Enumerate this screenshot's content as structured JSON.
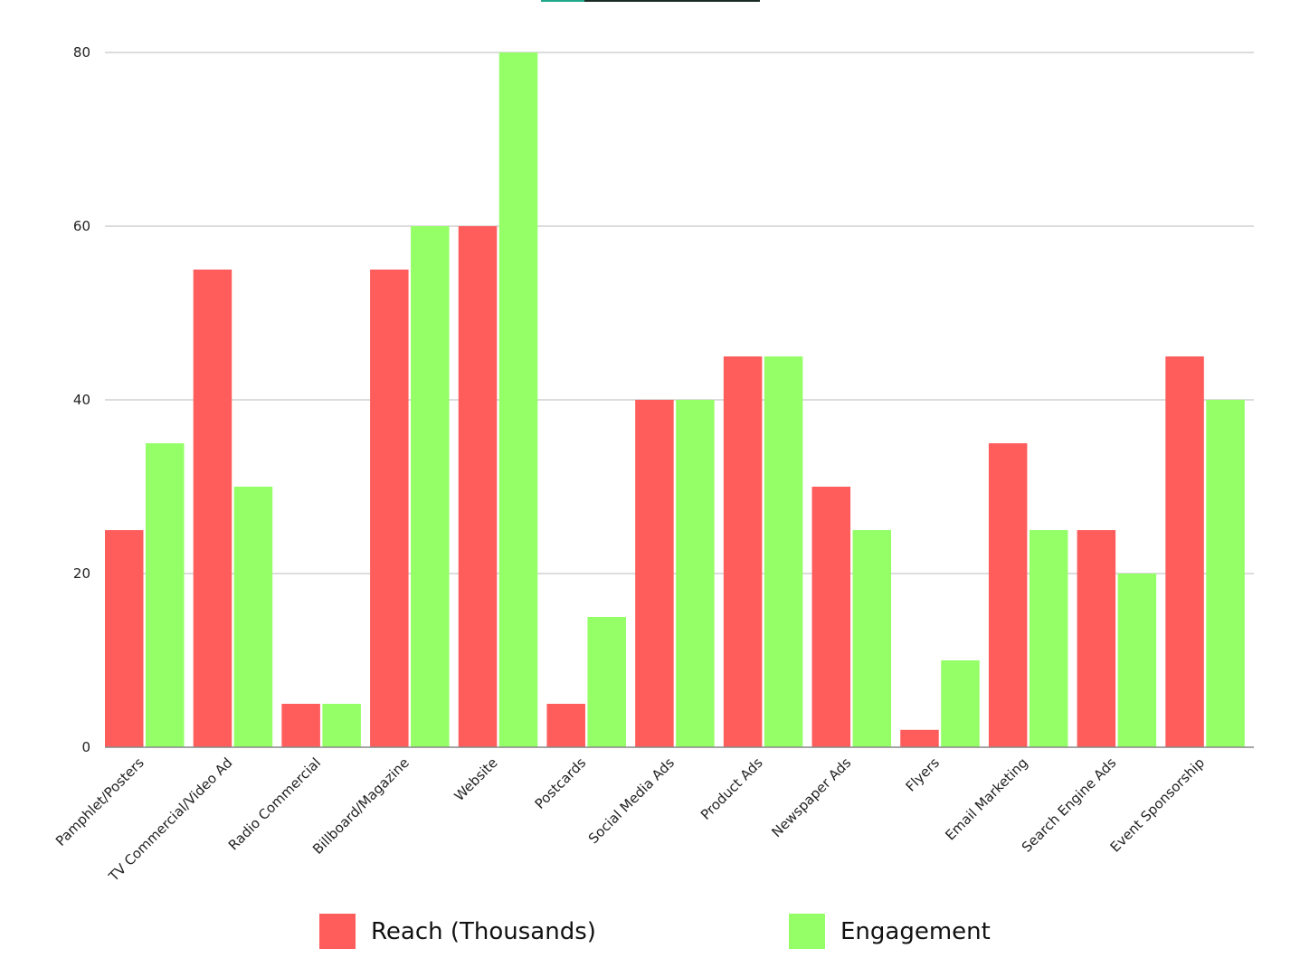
{
  "chart_data": {
    "type": "bar",
    "title": "",
    "xlabel": "",
    "ylabel": "",
    "categories": [
      "Pamphlet/Posters",
      "TV Commercial/Video Ad",
      "Radio Commercial",
      "Billboard/Magazine",
      "Website",
      "Postcards",
      "Social Media Ads",
      "Product Ads",
      "Newspaper Ads",
      "Flyers",
      "Email Marketing",
      "Search Engine Ads",
      "Event Sponsorship"
    ],
    "series": [
      {
        "name": "Reach (Thousands)",
        "color": "#ff5c5c",
        "values": [
          25,
          55,
          5,
          55,
          60,
          5,
          40,
          45,
          30,
          2,
          35,
          25,
          45
        ]
      },
      {
        "name": "Engagement",
        "color": "#94ff66",
        "values": [
          35,
          30,
          5,
          60,
          80,
          15,
          40,
          45,
          25,
          10,
          25,
          20,
          40
        ]
      }
    ],
    "ylim": [
      0,
      80
    ],
    "yticks": [
      0,
      20,
      40,
      60,
      80
    ],
    "grid": true,
    "legend_position": "bottom"
  },
  "top_accent_colors": [
    "#1fa88a",
    "#1a2b24"
  ]
}
